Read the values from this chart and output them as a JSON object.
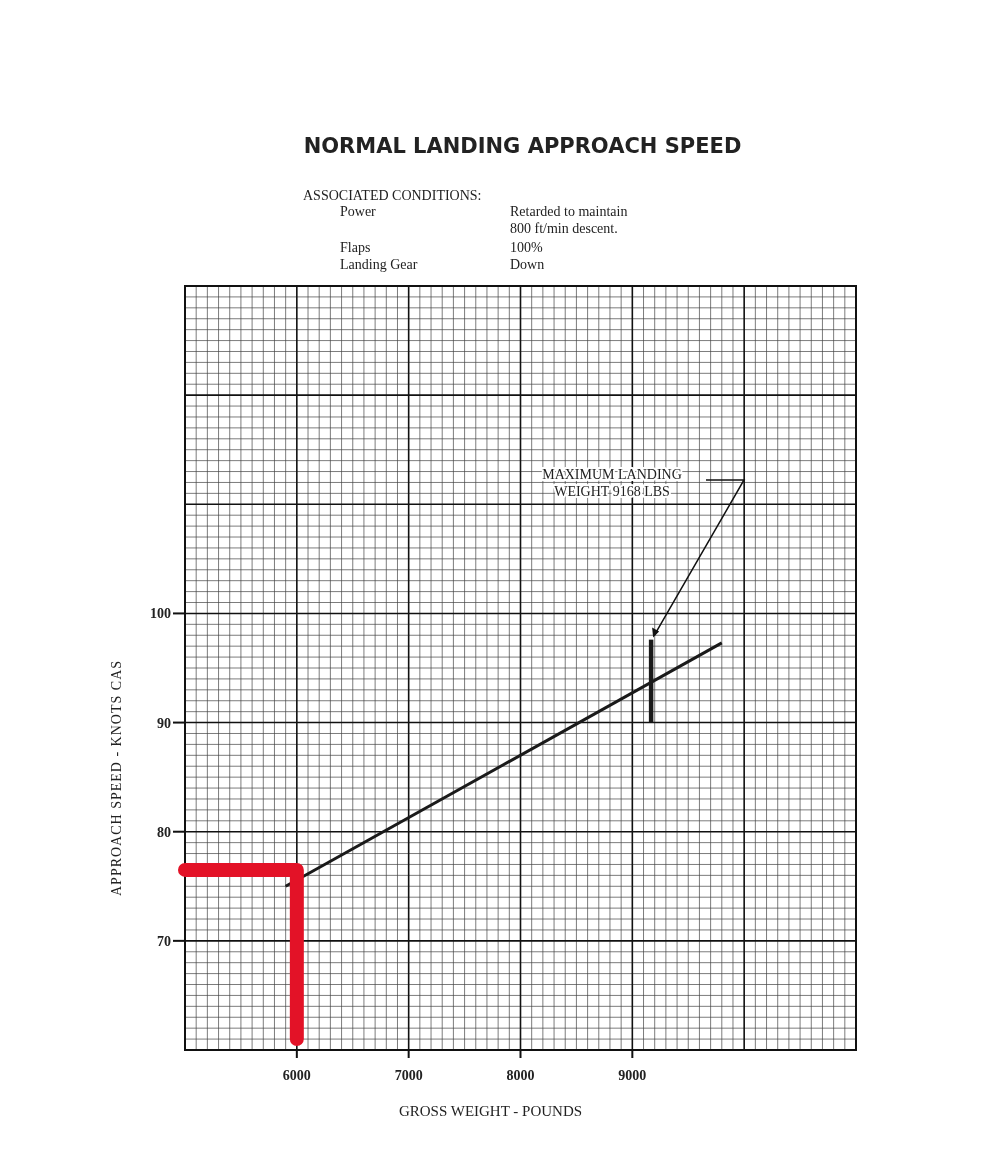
{
  "chart_data": {
    "type": "line",
    "title": "NORMAL LANDING APPROACH SPEED",
    "subtitle": "ASSOCIATED CONDITIONS:",
    "xlabel": "GROSS WEIGHT - POUNDS",
    "ylabel": "APPROACH SPEED - KNOTS CAS",
    "xlim": [
      5000,
      11000
    ],
    "ylim": [
      60,
      130
    ],
    "xticks": [
      {
        "value": 5000,
        "label": null
      },
      6000,
      7000,
      8000,
      9000,
      {
        "value": 10000,
        "label": null
      },
      {
        "value": 11000,
        "label": null
      }
    ],
    "yticks": [
      {
        "value": 60,
        "label": null
      },
      70,
      80,
      90,
      100,
      {
        "value": 110,
        "label": null
      },
      {
        "value": 120,
        "label": null
      },
      {
        "value": 130,
        "label": null
      }
    ],
    "grid": true,
    "marker": "none",
    "line_style": "solid",
    "series": [
      {
        "color": "#1a1a1a",
        "x": [
          5900,
          9800
        ],
        "values": [
          75,
          97.3
        ]
      },
      {
        "color": "#1a1a1a",
        "x": [
          9168,
          9168
        ],
        "values": [
          90,
          97.6
        ]
      },
      {
        "color": "#e31227",
        "x": [
          5000,
          6000,
          6000
        ],
        "values": [
          76.5,
          76.5,
          61
        ]
      }
    ],
    "annotations": [
      "Power",
      "Retarded to maintain\n800 ft/min descent.",
      "Flaps",
      "100%",
      "Landing Gear",
      "Down",
      "MAXIMUM LANDING\nWEIGHT 9168 LBS"
    ]
  }
}
